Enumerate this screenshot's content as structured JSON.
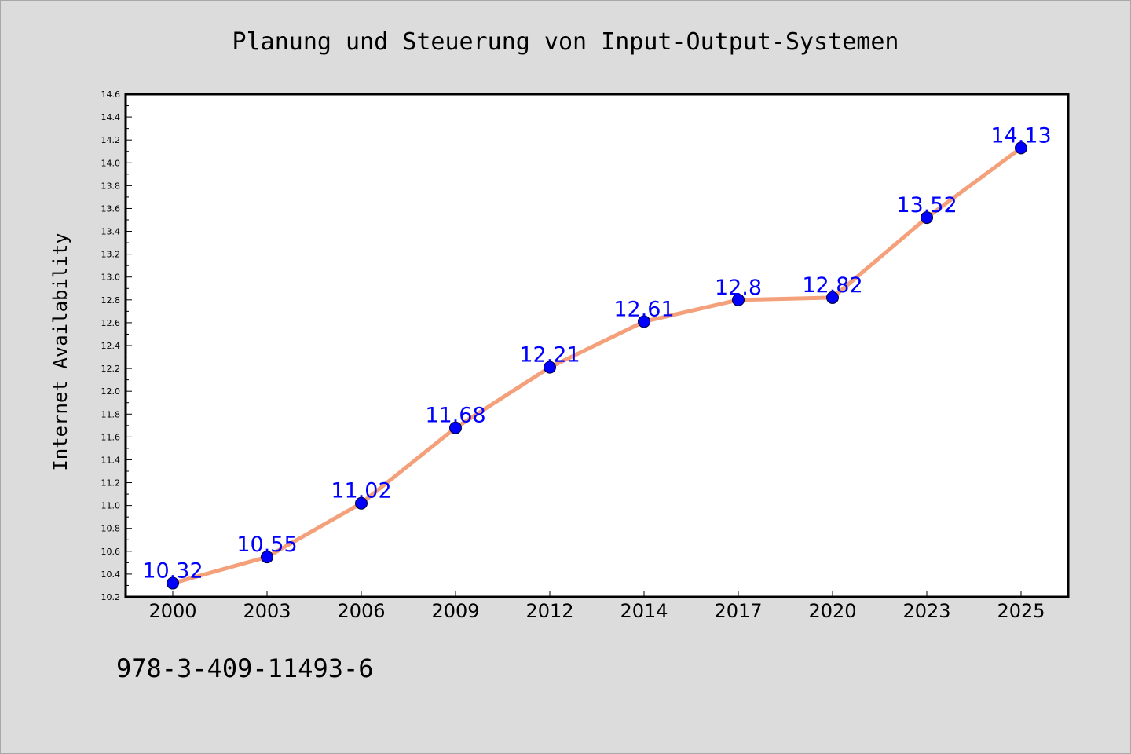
{
  "chart_data": {
    "type": "line",
    "title": "Planung und Steuerung von Input-Output-Systemen",
    "xlabel": "",
    "ylabel": "Internet Availability",
    "categories": [
      "2000",
      "2003",
      "2006",
      "2009",
      "2012",
      "2014",
      "2017",
      "2020",
      "2023",
      "2025"
    ],
    "values": [
      10.32,
      10.55,
      11.02,
      11.68,
      12.21,
      12.61,
      12.8,
      12.82,
      13.52,
      14.13
    ],
    "data_labels": [
      "10.32",
      "10.55",
      "11.02",
      "11.68",
      "12.21",
      "12.61",
      "12.8",
      "12.82",
      "13.52",
      "14.13"
    ],
    "ylim": [
      10.2,
      14.6
    ],
    "yticks": [
      "10.2",
      "10.4",
      "10.6",
      "10.8",
      "11.0",
      "11.2",
      "11.4",
      "11.6",
      "11.8",
      "12.0",
      "12.2",
      "12.4",
      "12.6",
      "12.8",
      "13.0",
      "13.2",
      "13.4",
      "13.6",
      "13.8",
      "14.0",
      "14.2",
      "14.4",
      "14.6"
    ],
    "grid": false,
    "line_color": "#f4a07a",
    "marker_color": "#0000ff",
    "label_color": "#0000ff"
  },
  "footer": {
    "code": "978-3-409-11493-6"
  }
}
